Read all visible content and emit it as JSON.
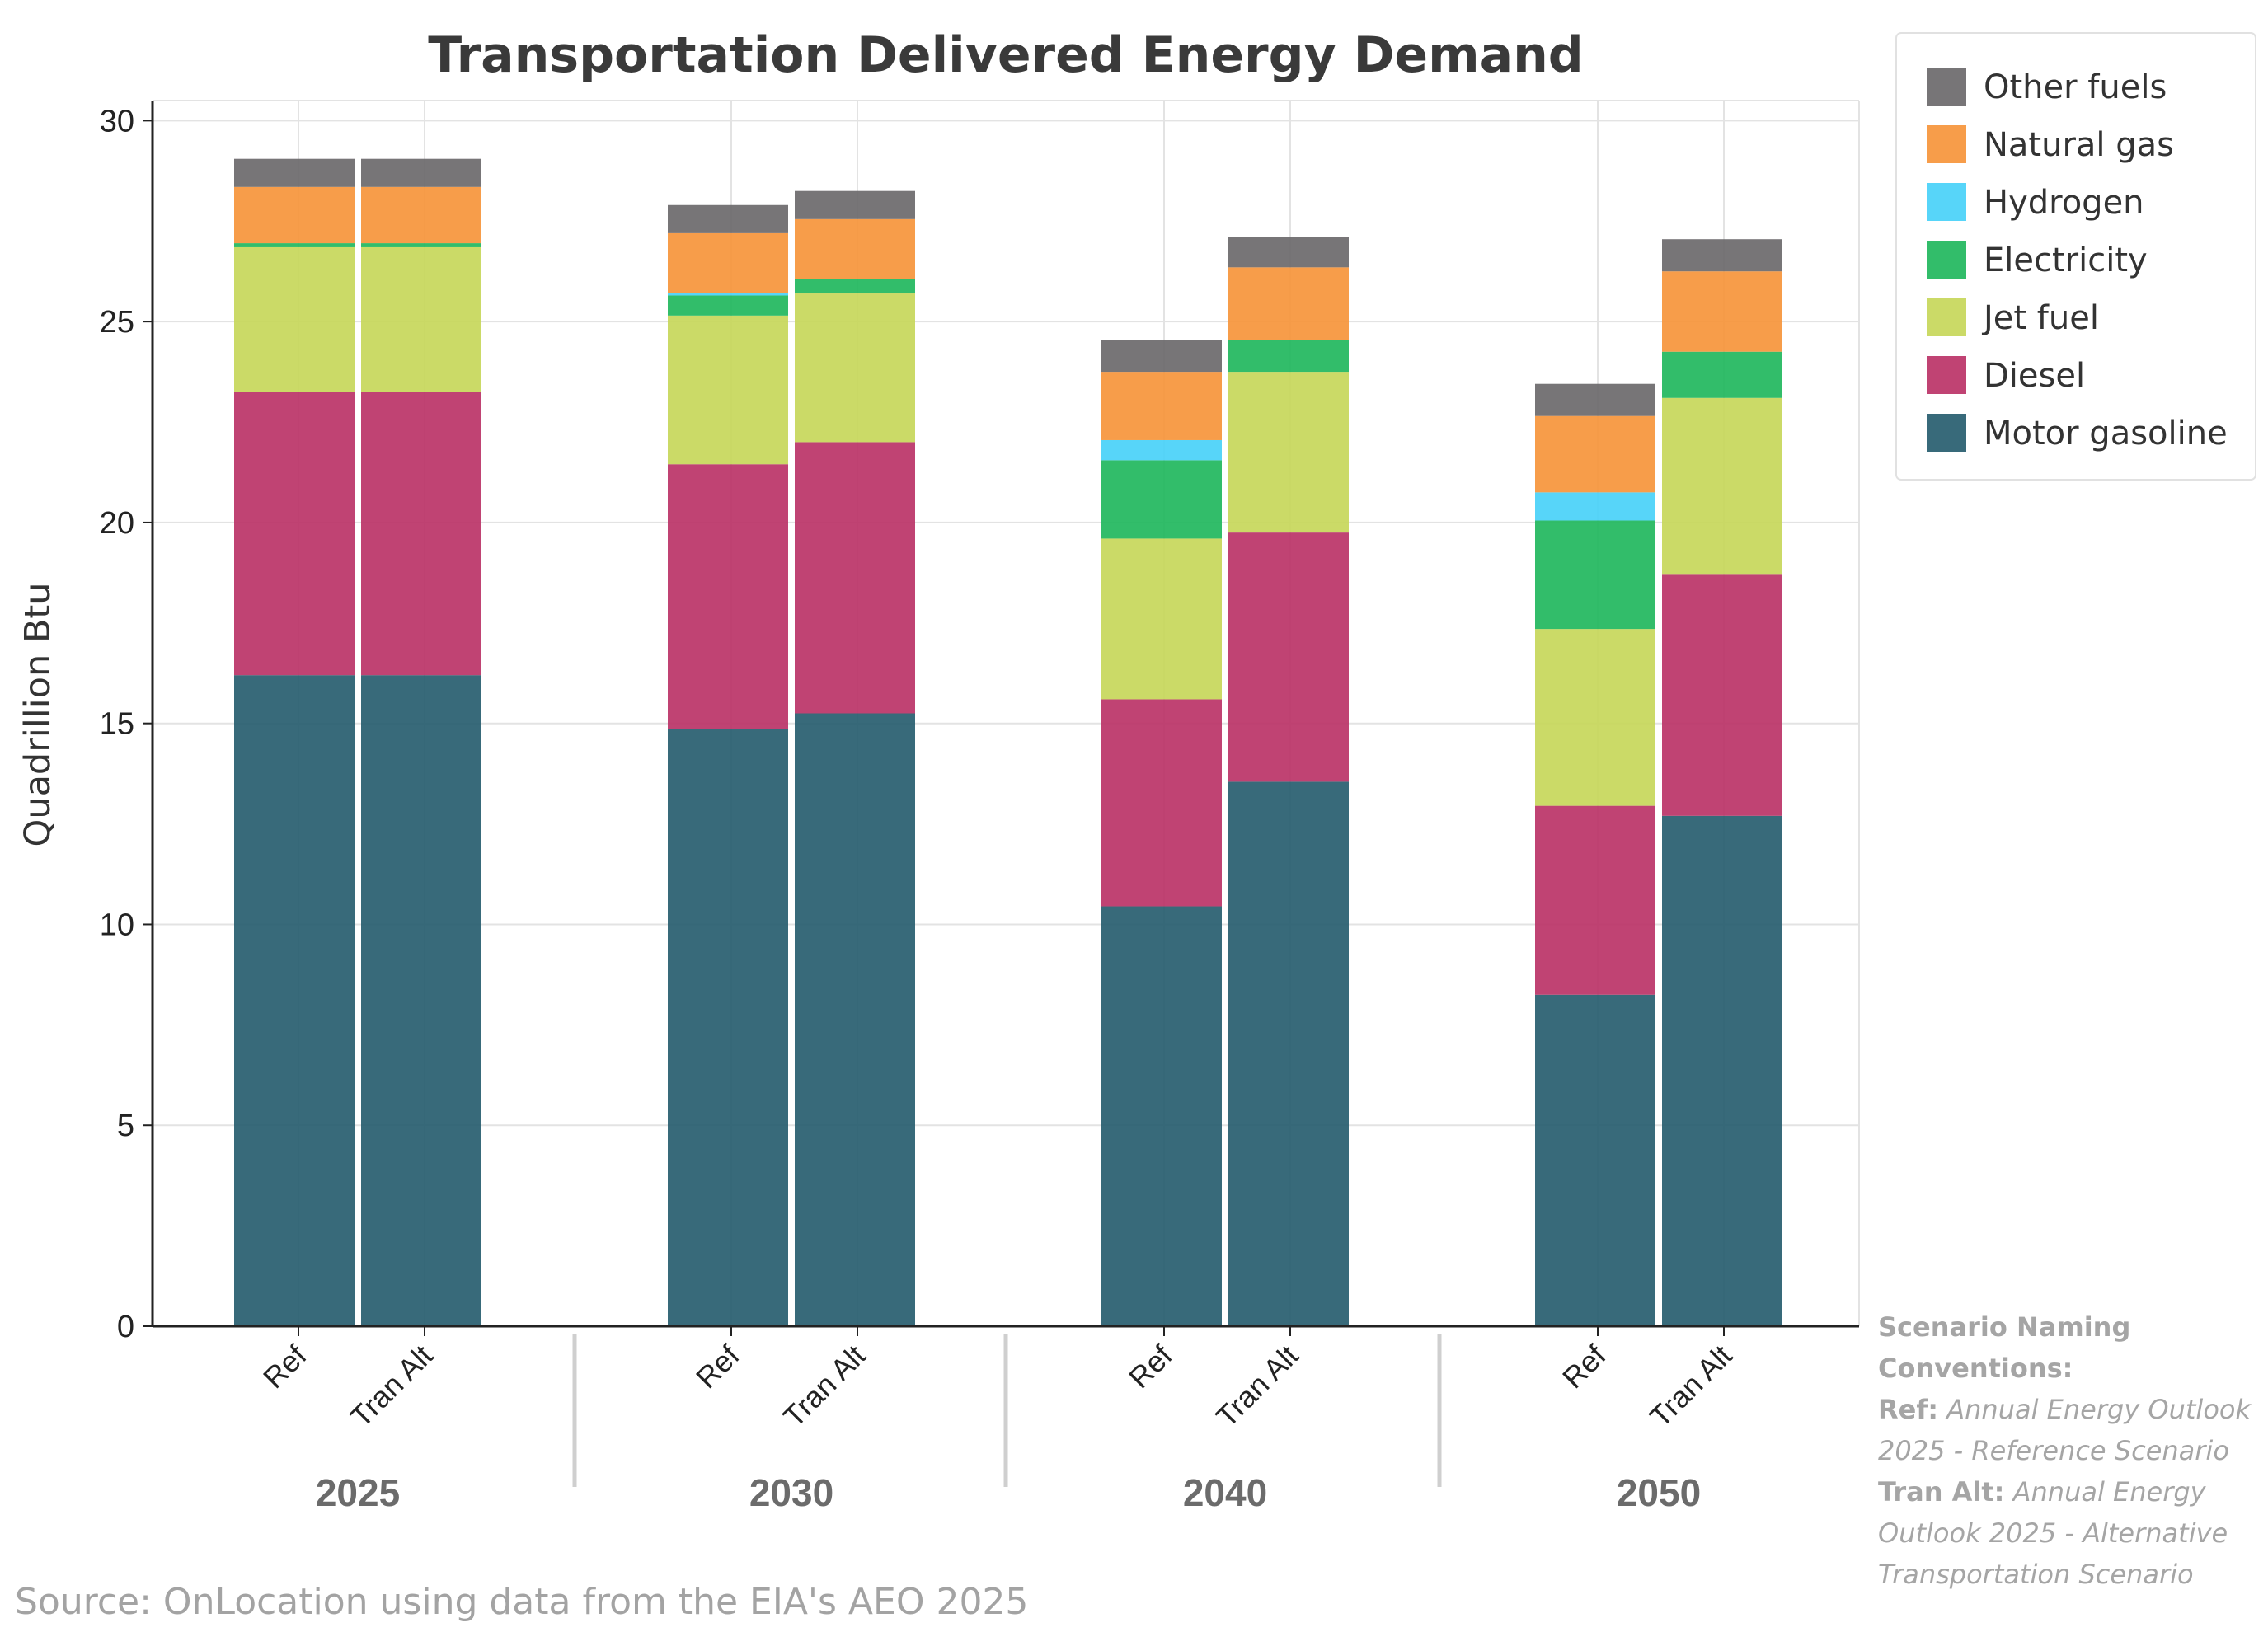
{
  "chart_data": {
    "type": "bar",
    "stacked": true,
    "title": "Transportation Delivered Energy Demand",
    "xlabel": "",
    "ylabel": "Quadrillion Btu",
    "ylim": [
      0,
      30.5
    ],
    "yticks": [
      0,
      5,
      10,
      15,
      20,
      25,
      30
    ],
    "grid": true,
    "legend_position": "top-right, outside plot",
    "groups": [
      "2025",
      "2030",
      "2040",
      "2050"
    ],
    "scenarios": [
      "Ref",
      "Tran Alt"
    ],
    "categories": [
      "Ref",
      "Tran Alt",
      "Ref",
      "Tran Alt",
      "Ref",
      "Tran Alt",
      "Ref",
      "Tran Alt"
    ],
    "category_groups": [
      "2025",
      "2025",
      "2030",
      "2030",
      "2040",
      "2040",
      "2050",
      "2050"
    ],
    "series": [
      {
        "name": "Motor gasoline",
        "color": "#225A6C",
        "values": [
          16.2,
          16.2,
          14.85,
          15.25,
          10.45,
          13.55,
          8.25,
          12.7
        ]
      },
      {
        "name": "Diesel",
        "color": "#B92F64",
        "values": [
          7.05,
          7.05,
          6.6,
          6.75,
          5.15,
          6.2,
          4.7,
          6.0
        ]
      },
      {
        "name": "Jet fuel",
        "color": "#C5D656",
        "values": [
          3.6,
          3.6,
          3.7,
          3.7,
          4.0,
          4.0,
          4.4,
          4.4
        ]
      },
      {
        "name": "Electricity",
        "color": "#1CB65A",
        "values": [
          0.1,
          0.1,
          0.5,
          0.35,
          1.95,
          0.8,
          2.7,
          1.15
        ]
      },
      {
        "name": "Hydrogen",
        "color": "#45D0F8",
        "values": [
          0.0,
          0.0,
          0.05,
          0.0,
          0.5,
          0.0,
          0.7,
          0.0
        ]
      },
      {
        "name": "Natural gas",
        "color": "#F69236",
        "values": [
          1.4,
          1.4,
          1.5,
          1.5,
          1.7,
          1.8,
          1.9,
          2.0
        ]
      },
      {
        "name": "Other fuels",
        "color": "#686668",
        "values": [
          0.7,
          0.7,
          0.7,
          0.7,
          0.8,
          0.75,
          0.8,
          0.8
        ]
      }
    ]
  },
  "footer": {
    "source": "Source: OnLocation using data from the EIA's AEO 2025"
  },
  "note": {
    "heading_line1": "Scenario Naming",
    "heading_line2": "Conventions:",
    "ref_label": "Ref:",
    "ref_text_line1": " Annual Energy Outlook",
    "ref_text_line2": "2025 - Reference Scenario",
    "alt_label": "Tran Alt:",
    "alt_text_line1": " Annual Energy",
    "alt_text_line2": "Outlook 2025 - Alternative",
    "alt_text_line3": "Transportation Scenario"
  }
}
